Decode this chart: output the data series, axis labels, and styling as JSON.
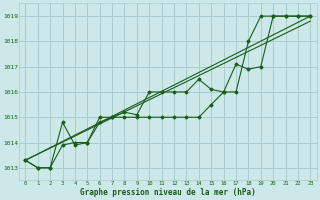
{
  "title": "Graphe pression niveau de la mer (hPa)",
  "bg_color": "#cce8e8",
  "grid_color": "#aacccc",
  "line_color": "#1a5c1a",
  "xlim": [
    -0.5,
    23.5
  ],
  "ylim": [
    1012.5,
    1019.5
  ],
  "yticks": [
    1013,
    1014,
    1015,
    1016,
    1017,
    1018,
    1019
  ],
  "xticks": [
    0,
    1,
    2,
    3,
    4,
    5,
    6,
    7,
    8,
    9,
    10,
    11,
    12,
    13,
    14,
    15,
    16,
    17,
    18,
    19,
    20,
    21,
    22,
    23
  ],
  "series": [
    {
      "x": [
        0,
        1,
        2,
        3,
        4,
        5,
        6,
        7,
        8,
        9,
        10,
        11,
        12,
        13,
        14,
        15,
        16,
        17,
        18,
        19,
        20,
        21,
        22,
        23
      ],
      "y": [
        1013.3,
        1013.0,
        1013.0,
        1014.8,
        1013.9,
        1014.0,
        1015.0,
        1015.0,
        1015.2,
        1015.1,
        1016.0,
        1016.0,
        1016.0,
        1016.0,
        1016.5,
        1016.1,
        1016.0,
        1017.1,
        1016.9,
        1017.0,
        1019.0,
        1019.0,
        1019.0,
        1019.0
      ],
      "marker": true
    },
    {
      "x": [
        0,
        1,
        2,
        3,
        4,
        5,
        6,
        7,
        8,
        9,
        10,
        11,
        12,
        13,
        14,
        15,
        16,
        17,
        18,
        19,
        20,
        21,
        22,
        23
      ],
      "y": [
        1013.3,
        1013.0,
        1013.0,
        1013.9,
        1014.0,
        1014.0,
        1014.8,
        1015.0,
        1015.0,
        1015.0,
        1015.0,
        1015.0,
        1015.0,
        1015.0,
        1015.0,
        1015.5,
        1016.0,
        1016.0,
        1018.0,
        1019.0,
        1019.0,
        1019.0,
        1019.0,
        1019.0
      ],
      "marker": true
    },
    {
      "x": [
        0,
        23
      ],
      "y": [
        1013.3,
        1019.0
      ],
      "marker": false
    },
    {
      "x": [
        0,
        23
      ],
      "y": [
        1013.3,
        1018.8
      ],
      "marker": false
    }
  ]
}
